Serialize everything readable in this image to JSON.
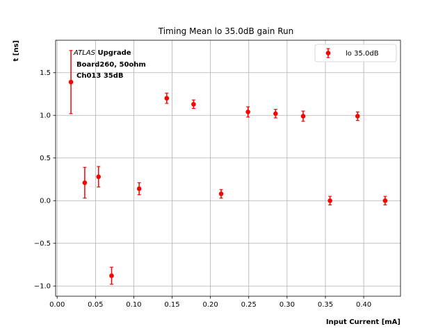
{
  "chart_data": {
    "type": "scatter",
    "title": "Timing Mean lo 35.0dB gain Run",
    "xlabel": "Input Current [mA]",
    "ylabel": "t [ns]",
    "xlim": [
      -0.002,
      0.448
    ],
    "ylim": [
      -1.12,
      1.88
    ],
    "xticks": [
      "0.00",
      "0.05",
      "0.10",
      "0.15",
      "0.20",
      "0.25",
      "0.30",
      "0.35",
      "0.40"
    ],
    "yticks": [
      "−1.0",
      "−0.5",
      "0.0",
      "0.5",
      "1.0",
      "1.5"
    ],
    "grid": true,
    "legend_position": "top-right",
    "annotation": {
      "line1_italic": "ATLAS",
      "line1_bold": "Upgrade",
      "line2": "Board260, 50ohm",
      "line3": "Ch013 35dB"
    },
    "series": [
      {
        "name": "lo 35.0dB",
        "color": "#ff0000",
        "x": [
          0.018,
          0.036,
          0.054,
          0.071,
          0.107,
          0.143,
          0.178,
          0.214,
          0.249,
          0.285,
          0.321,
          0.356,
          0.392,
          0.428
        ],
        "y": [
          1.39,
          0.21,
          0.28,
          -0.88,
          0.14,
          1.2,
          1.13,
          0.08,
          1.04,
          1.02,
          0.99,
          0.0,
          0.99,
          0.0
        ],
        "yerr": [
          0.37,
          0.18,
          0.12,
          0.1,
          0.07,
          0.06,
          0.05,
          0.05,
          0.06,
          0.05,
          0.06,
          0.05,
          0.05,
          0.05
        ]
      }
    ]
  }
}
